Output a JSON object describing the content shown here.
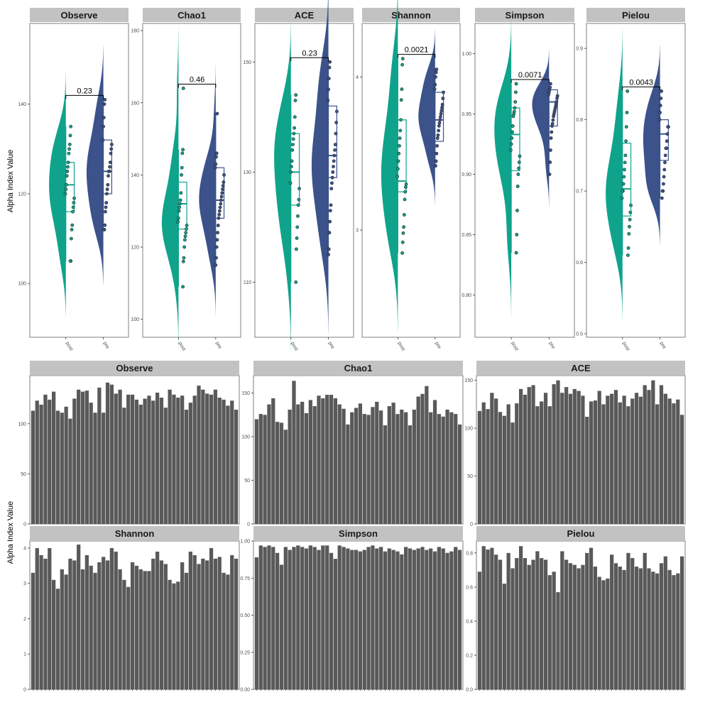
{
  "colors": {
    "post": "#0fa38c",
    "pre": "#3b528b",
    "bar": "#595959",
    "strip": "#c2c2c2",
    "panel_border": "#7f7f7f",
    "background": "#ffffff"
  },
  "chart_data": [
    {
      "type": "violin-box",
      "ylabel": "Alpha Index Value",
      "groups": [
        "post",
        "pre"
      ],
      "group_colors": {
        "post": "#0fa38c",
        "pre": "#3b528b"
      },
      "panels": [
        {
          "metric": "Observe",
          "ylim": [
            88,
            158
          ],
          "yticks": [
            100,
            120,
            140
          ],
          "tick_labels": [
            "100",
            "120",
            "140"
          ],
          "p_value": "0.23",
          "post": {
            "points": [
              135,
              133,
              131,
              130,
              129,
              127,
              126,
              125,
              124,
              122,
              121,
              120,
              119,
              118,
              117,
              116,
              113,
              112,
              110,
              105,
              105
            ],
            "box": {
              "q1": 116,
              "median": 122,
              "q3": 127,
              "lo": 105,
              "hi": 135
            }
          },
          "pre": {
            "points": [
              141,
              140,
              137,
              135,
              132,
              131,
              130,
              129,
              127,
              126,
              125,
              125,
              124,
              122,
              121,
              120,
              118,
              117,
              116,
              113,
              112,
              112
            ],
            "box": {
              "q1": 120,
              "median": 125,
              "q3": 132,
              "lo": 112,
              "hi": 141
            }
          }
        },
        {
          "metric": "Chao1",
          "ylim": [
            95,
            182
          ],
          "yticks": [
            100,
            120,
            140,
            160,
            180
          ],
          "tick_labels": [
            "100",
            "120",
            "140",
            "160",
            "180"
          ],
          "p_value": "0.46",
          "post": {
            "points": [
              164,
              147,
              146,
              142,
              140,
              135,
              133,
              132,
              131,
              130,
              128,
              127,
              126,
              125,
              124,
              123,
              122,
              120,
              117,
              116,
              109
            ],
            "box": {
              "q1": 125,
              "median": 132,
              "q3": 138,
              "lo": 109,
              "hi": 147
            }
          },
          "pre": {
            "points": [
              157,
              146,
              145,
              143,
              142,
              140,
              138,
              137,
              136,
              135,
              134,
              133,
              132,
              131,
              130,
              129,
              128,
              126,
              124,
              122,
              120,
              117,
              115
            ],
            "box": {
              "q1": 128,
              "median": 133,
              "q3": 142,
              "lo": 115,
              "hi": 157
            }
          }
        },
        {
          "metric": "ACE",
          "ylim": [
            100,
            157
          ],
          "yticks": [
            110,
            130,
            150
          ],
          "tick_labels": [
            "110",
            "130",
            "150"
          ],
          "p_value": "0.23",
          "post": {
            "points": [
              144,
              143,
              140,
              138,
              137,
              136,
              135,
              134,
              132,
              131,
              130,
              128,
              127,
              125,
              124,
              122,
              120,
              118,
              116,
              110
            ],
            "box": {
              "q1": 124,
              "median": 130,
              "q3": 137,
              "lo": 110,
              "hi": 144
            }
          },
          "pre": {
            "points": [
              150,
              149,
              147,
              145,
              143,
              141,
              139,
              137,
              135,
              134,
              133,
              132,
              131,
              130,
              129,
              128,
              127,
              124,
              123,
              121,
              119,
              116,
              115
            ],
            "box": {
              "q1": 129,
              "median": 133,
              "q3": 142,
              "lo": 115,
              "hi": 150
            }
          }
        },
        {
          "metric": "Shannon",
          "ylim": [
            2.3,
            4.35
          ],
          "yticks": [
            3,
            4
          ],
          "tick_labels": [
            "3",
            "4"
          ],
          "p_value": "0.0021",
          "post": {
            "points": [
              4.12,
              4.08,
              3.92,
              3.85,
              3.72,
              3.65,
              3.6,
              3.55,
              3.5,
              3.45,
              3.4,
              3.35,
              3.3,
              3.28,
              3.25,
              3.2,
              3.1,
              3.02,
              2.98,
              2.92,
              2.85
            ],
            "box": {
              "q1": 3.25,
              "median": 3.32,
              "q3": 3.72,
              "lo": 2.85,
              "hi": 4.12
            }
          },
          "pre": {
            "points": [
              4.05,
              4.03,
              4.0,
              3.95,
              3.92,
              3.9,
              3.86,
              3.82,
              3.8,
              3.78,
              3.76,
              3.74,
              3.72,
              3.7,
              3.68,
              3.65,
              3.62,
              3.6,
              3.55,
              3.5,
              3.45,
              3.42
            ],
            "box": {
              "q1": 3.58,
              "median": 3.72,
              "q3": 3.9,
              "lo": 3.42,
              "hi": 4.05
            }
          }
        },
        {
          "metric": "Simpson",
          "ylim": [
            0.765,
            1.025
          ],
          "yticks": [
            0.8,
            0.85,
            0.9,
            0.95,
            1.0
          ],
          "tick_labels": [
            "0.80",
            "0.85",
            "0.90",
            "0.95",
            "1.00"
          ],
          "p_value": "0.0071",
          "post": {
            "points": [
              0.975,
              0.968,
              0.96,
              0.955,
              0.952,
              0.95,
              0.948,
              0.94,
              0.935,
              0.93,
              0.925,
              0.92,
              0.915,
              0.91,
              0.905,
              0.9,
              0.89,
              0.87,
              0.85,
              0.835
            ],
            "box": {
              "q1": 0.903,
              "median": 0.933,
              "q3": 0.955,
              "lo": 0.835,
              "hi": 0.975
            }
          },
          "pre": {
            "points": [
              0.975,
              0.972,
              0.97,
              0.968,
              0.966,
              0.965,
              0.963,
              0.96,
              0.958,
              0.956,
              0.954,
              0.952,
              0.95,
              0.948,
              0.945,
              0.942,
              0.94,
              0.935,
              0.93,
              0.92,
              0.91,
              0.9
            ],
            "box": {
              "q1": 0.94,
              "median": 0.96,
              "q3": 0.97,
              "lo": 0.9,
              "hi": 0.975
            }
          }
        },
        {
          "metric": "Pielou",
          "ylim": [
            0.495,
            0.935
          ],
          "yticks": [
            0.5,
            0.6,
            0.7,
            0.8,
            0.9
          ],
          "tick_labels": [
            "0.5",
            "0.6",
            "0.7",
            "0.8",
            "0.9"
          ],
          "p_value": "0.0043",
          "post": {
            "points": [
              0.84,
              0.81,
              0.79,
              0.77,
              0.75,
              0.74,
              0.73,
              0.72,
              0.71,
              0.7,
              0.7,
              0.69,
              0.68,
              0.67,
              0.66,
              0.65,
              0.64,
              0.62,
              0.61
            ],
            "box": {
              "q1": 0.665,
              "median": 0.703,
              "q3": 0.767,
              "lo": 0.61,
              "hi": 0.84
            }
          },
          "pre": {
            "points": [
              0.84,
              0.83,
              0.82,
              0.81,
              0.8,
              0.79,
              0.79,
              0.78,
              0.77,
              0.76,
              0.76,
              0.75,
              0.74,
              0.73,
              0.72,
              0.71,
              0.7,
              0.7,
              0.69
            ],
            "box": {
              "q1": 0.743,
              "median": 0.78,
              "q3": 0.8,
              "lo": 0.69,
              "hi": 0.84
            }
          }
        }
      ]
    },
    {
      "type": "bar",
      "ylabel": "Alpha Index Value",
      "sample_count": 50,
      "panels": [
        {
          "metric": "Observe",
          "ylim": [
            0,
            148
          ],
          "yticks": [
            0,
            50,
            100
          ],
          "tick_labels": [
            "0",
            "50",
            "100"
          ],
          "values": [
            113,
            123,
            119,
            129,
            124,
            132,
            113,
            111,
            117,
            105,
            125,
            134,
            132,
            133,
            121,
            111,
            136,
            111,
            141,
            139,
            130,
            134,
            116,
            129,
            129,
            124,
            119,
            125,
            128,
            123,
            131,
            126,
            116,
            134,
            129,
            126,
            128,
            114,
            121,
            128,
            138,
            134,
            130,
            129,
            134,
            126,
            124,
            118,
            123,
            114
          ]
        },
        {
          "metric": "Chao1",
          "ylim": [
            0,
            170
          ],
          "yticks": [
            0,
            50,
            100,
            150
          ],
          "tick_labels": [
            "0",
            "50",
            "100",
            "150"
          ],
          "values": [
            120,
            126,
            125,
            137,
            144,
            117,
            116,
            108,
            131,
            164,
            137,
            140,
            127,
            142,
            135,
            147,
            144,
            148,
            148,
            144,
            137,
            132,
            114,
            128,
            133,
            138,
            126,
            125,
            134,
            140,
            130,
            113,
            135,
            139,
            126,
            131,
            128,
            113,
            131,
            146,
            149,
            158,
            128,
            142,
            126,
            123,
            131,
            128,
            126,
            114
          ]
        },
        {
          "metric": "ACE",
          "ylim": [
            0,
            155
          ],
          "yticks": [
            0,
            50,
            100,
            150
          ],
          "tick_labels": [
            "0",
            "50",
            "100",
            "150"
          ],
          "values": [
            118,
            127,
            120,
            137,
            131,
            117,
            113,
            125,
            106,
            126,
            141,
            135,
            143,
            145,
            123,
            128,
            137,
            123,
            146,
            150,
            137,
            143,
            136,
            141,
            139,
            134,
            112,
            128,
            129,
            139,
            125,
            134,
            136,
            140,
            127,
            134,
            123,
            131,
            137,
            133,
            145,
            140,
            150,
            125,
            145,
            136,
            131,
            126,
            130,
            114
          ]
        },
        {
          "metric": "Shannon",
          "ylim": [
            0,
            4.2
          ],
          "yticks": [
            0,
            1,
            2,
            3,
            4
          ],
          "tick_labels": [
            "0",
            "1",
            "2",
            "3",
            "4"
          ],
          "values": [
            3.3,
            4.0,
            3.8,
            3.7,
            4.0,
            3.1,
            2.85,
            3.4,
            3.25,
            3.7,
            3.65,
            4.1,
            3.4,
            3.8,
            3.5,
            3.3,
            3.6,
            3.75,
            3.65,
            4.0,
            3.9,
            3.4,
            3.1,
            2.9,
            3.6,
            3.5,
            3.4,
            3.35,
            3.35,
            3.7,
            3.9,
            3.65,
            3.55,
            3.1,
            3.0,
            3.05,
            3.6,
            3.3,
            3.9,
            3.8,
            3.55,
            3.7,
            3.65,
            4.0,
            3.7,
            3.75,
            3.3,
            3.25,
            3.8,
            3.7
          ]
        },
        {
          "metric": "Simpson",
          "ylim": [
            0,
            1.0
          ],
          "yticks": [
            0,
            0.25,
            0.5,
            0.75,
            1.0
          ],
          "tick_labels": [
            "0.00",
            "0.25",
            "0.50",
            "0.75",
            "1.00"
          ],
          "values": [
            0.89,
            0.97,
            0.96,
            0.97,
            0.96,
            0.92,
            0.84,
            0.96,
            0.94,
            0.96,
            0.97,
            0.96,
            0.95,
            0.97,
            0.96,
            0.94,
            0.97,
            0.97,
            0.92,
            0.88,
            0.97,
            0.96,
            0.95,
            0.94,
            0.94,
            0.93,
            0.94,
            0.96,
            0.97,
            0.95,
            0.96,
            0.93,
            0.95,
            0.94,
            0.93,
            0.91,
            0.96,
            0.95,
            0.94,
            0.95,
            0.96,
            0.94,
            0.95,
            0.93,
            0.96,
            0.95,
            0.92,
            0.93,
            0.96,
            0.94
          ]
        },
        {
          "metric": "Pielou",
          "ylim": [
            0,
            0.87
          ],
          "yticks": [
            0,
            0.2,
            0.4,
            0.6,
            0.8
          ],
          "tick_labels": [
            "0.0",
            "0.2",
            "0.4",
            "0.6",
            "0.8"
          ],
          "values": [
            0.69,
            0.84,
            0.82,
            0.83,
            0.79,
            0.76,
            0.62,
            0.8,
            0.71,
            0.77,
            0.84,
            0.77,
            0.73,
            0.76,
            0.81,
            0.77,
            0.76,
            0.67,
            0.69,
            0.57,
            0.81,
            0.76,
            0.74,
            0.73,
            0.71,
            0.73,
            0.8,
            0.83,
            0.72,
            0.66,
            0.64,
            0.65,
            0.79,
            0.74,
            0.72,
            0.7,
            0.8,
            0.77,
            0.72,
            0.71,
            0.8,
            0.71,
            0.69,
            0.68,
            0.74,
            0.78,
            0.7,
            0.67,
            0.68,
            0.78
          ]
        }
      ]
    }
  ]
}
